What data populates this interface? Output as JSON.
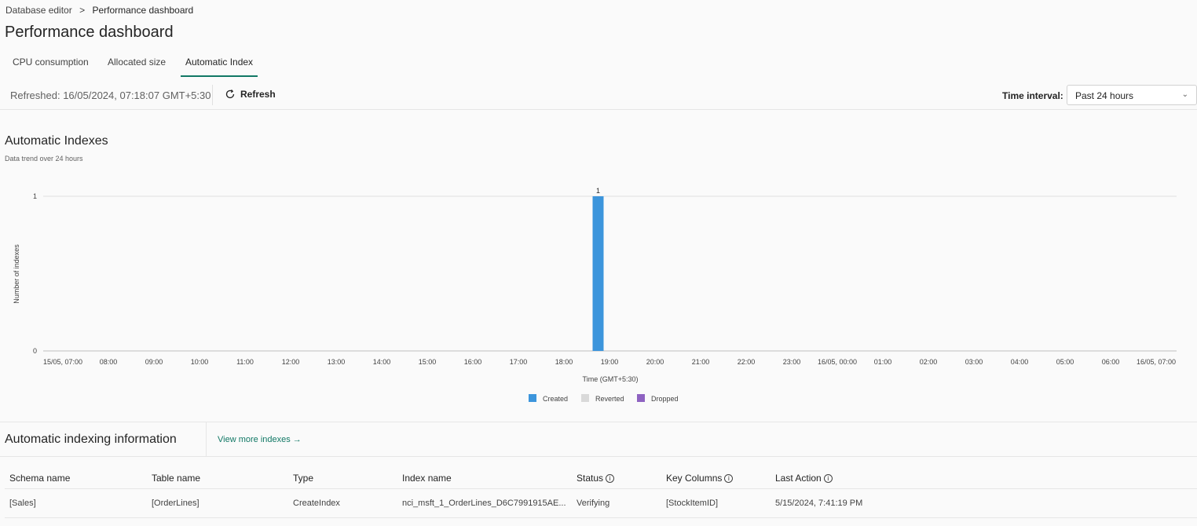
{
  "breadcrumb": {
    "parent": "Database editor",
    "separator": ">",
    "current": "Performance dashboard"
  },
  "page_title": "Performance dashboard",
  "tabs": [
    {
      "label": "CPU consumption"
    },
    {
      "label": "Allocated size"
    },
    {
      "label": "Automatic Index",
      "active": true
    }
  ],
  "toolbar": {
    "refreshed": "Refreshed: 16/05/2024, 07:18:07 GMT+5:30",
    "refresh_label": "Refresh",
    "time_interval_label": "Time interval:",
    "time_interval_value": "Past 24 hours"
  },
  "chart_section": {
    "title": "Automatic Indexes",
    "subtitle": "Data trend over 24 hours"
  },
  "chart_data": {
    "type": "bar",
    "xlabel": "Time (GMT+5:30)",
    "ylabel": "Number of indexes",
    "ylim": [
      0,
      1
    ],
    "yticks": [
      "0",
      "1"
    ],
    "xticks": [
      "15/05, 07:00",
      "08:00",
      "09:00",
      "10:00",
      "11:00",
      "12:00",
      "13:00",
      "14:00",
      "15:00",
      "16:00",
      "17:00",
      "18:00",
      "19:00",
      "20:00",
      "21:00",
      "22:00",
      "23:00",
      "16/05, 00:00",
      "01:00",
      "02:00",
      "03:00",
      "04:00",
      "05:00",
      "06:00",
      "16/05, 07:00"
    ],
    "grid": true,
    "legend_position": "bottom",
    "series": [
      {
        "name": "Created",
        "color": "#3c95dc",
        "points": [
          {
            "x": "15/05 18:45",
            "y": 1,
            "label": "1"
          }
        ]
      },
      {
        "name": "Reverted",
        "color": "#d9d9d9",
        "points": []
      },
      {
        "name": "Dropped",
        "color": "#8e62c1",
        "points": []
      }
    ]
  },
  "info_section": {
    "title": "Automatic indexing information",
    "view_more": "View more indexes →"
  },
  "table": {
    "columns": [
      {
        "label": "Schema name"
      },
      {
        "label": "Table name"
      },
      {
        "label": "Type"
      },
      {
        "label": "Index name"
      },
      {
        "label": "Status",
        "info": true
      },
      {
        "label": "Key Columns",
        "info": true
      },
      {
        "label": "Last Action",
        "info": true
      }
    ],
    "rows": [
      [
        "[Sales]",
        "[OrderLines]",
        "CreateIndex",
        "nci_msft_1_OrderLines_D6C7991915AE...",
        "Verifying",
        "[StockItemID]",
        "5/15/2024, 7:41:19 PM"
      ]
    ]
  }
}
